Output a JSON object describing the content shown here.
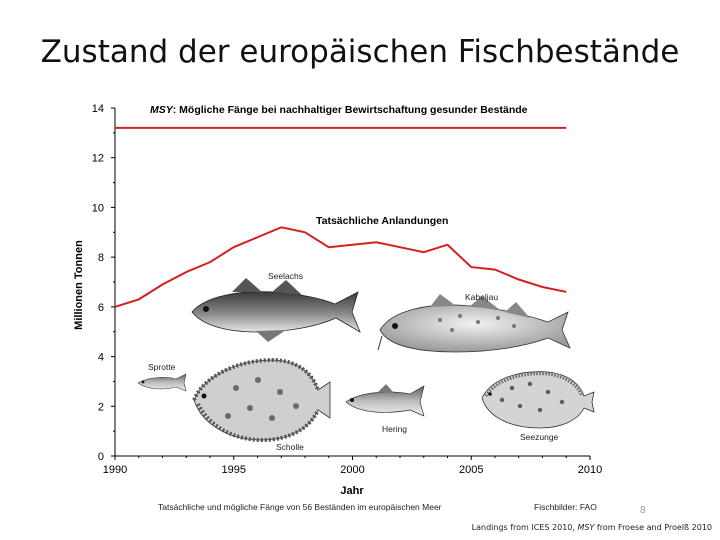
{
  "slide": {
    "title": "Zustand der europäischen Fischbestände",
    "page_number": "8",
    "source_note_prefix": "Landings from ICES 2010, ",
    "source_note_msy": "MSY",
    "source_note_suffix": " from Froese and Proelß 2010"
  },
  "chart_data": {
    "type": "line",
    "title": "",
    "xlabel": "Jahr",
    "ylabel": "Millionen Tonnen",
    "xlim": [
      1990,
      2010
    ],
    "ylim": [
      0,
      14
    ],
    "x_ticks": [
      1990,
      1995,
      2000,
      2005,
      2010
    ],
    "y_ticks": [
      0,
      2,
      4,
      6,
      8,
      10,
      12,
      14
    ],
    "grid": false,
    "line_color": "#d42020",
    "series": [
      {
        "name": "MSY",
        "label_italic": "MSY",
        "label_rest": ": Mögliche Fänge bei nachhaltiger Bewirtschaftung gesunder Bestände",
        "x": [
          1990,
          2009
        ],
        "values": [
          13.2,
          13.2
        ]
      },
      {
        "name": "Tatsächliche Anlandungen",
        "label": "Tatsächliche Anlandungen",
        "x": [
          1990,
          1991,
          1992,
          1993,
          1994,
          1995,
          1996,
          1997,
          1998,
          1999,
          2000,
          2001,
          2002,
          2003,
          2004,
          2005,
          2006,
          2007,
          2008,
          2009
        ],
        "values": [
          6.0,
          6.3,
          6.9,
          7.4,
          7.8,
          8.4,
          8.8,
          9.2,
          9.0,
          8.4,
          8.5,
          8.6,
          8.4,
          8.2,
          8.5,
          7.6,
          7.5,
          7.1,
          6.8,
          6.6
        ]
      }
    ],
    "caption": "Tatsächliche und mögliche Fänge von 56 Beständen im europäischen Meer",
    "image_credit": "Fischbilder: FAO",
    "fish_labels": [
      "Seelachs",
      "Kabeljau",
      "Sprotte",
      "Scholle",
      "Hering",
      "Seezunge"
    ]
  }
}
